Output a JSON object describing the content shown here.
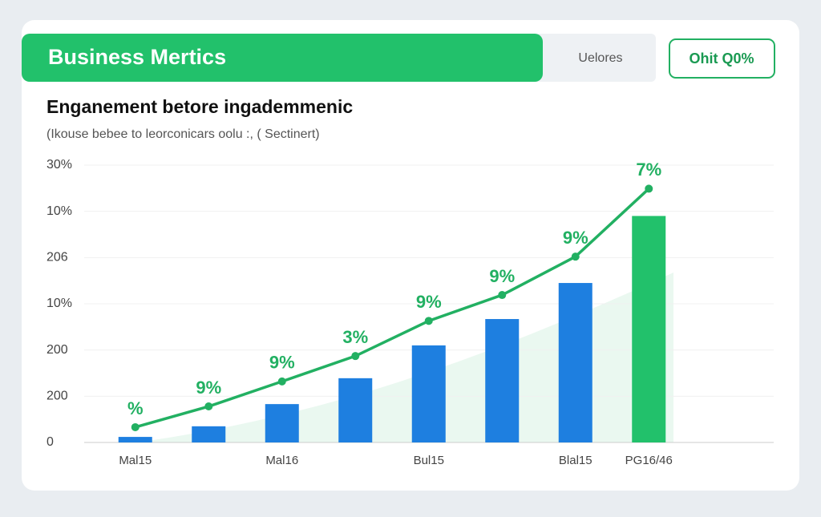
{
  "header": {
    "title": "Business Mertics",
    "tab": "Uelores",
    "button": "Ohit Q0%"
  },
  "chart_data": {
    "type": "bar",
    "title": "Enganement betore ingademmenic",
    "subtitle": "(Ikouse bebee to leorconicars oolu :, ( Sectinert)",
    "categories": [
      "Mal15",
      null,
      "Mal16",
      null,
      "Bul15",
      null,
      "Blal15",
      "PG16/46"
    ],
    "values": [
      0.12,
      0.35,
      0.83,
      1.39,
      2.1,
      2.67,
      3.45,
      4.9
    ],
    "colors": [
      "#1e7fe0",
      "#1e7fe0",
      "#1e7fe0",
      "#1e7fe0",
      "#1e7fe0",
      "#1e7fe0",
      "#1e7fe0",
      "#22c16b"
    ],
    "line_values": [
      0.33,
      0.78,
      1.32,
      1.87,
      2.63,
      3.19,
      4.02,
      5.49
    ],
    "line_color": "#22b062",
    "point_labels": [
      "%",
      "9%",
      "9%",
      "3%",
      "9%",
      "9%",
      "9%",
      "7%"
    ],
    "ylim": [
      0,
      6
    ],
    "yticks": [
      0,
      {
        "value": 1,
        "label": "200"
      },
      {
        "value": 2,
        "label": "200"
      },
      {
        "value": 3,
        "label": "10%"
      },
      {
        "value": 4,
        "label": "206"
      },
      {
        "value": 5,
        "label": "10%"
      },
      {
        "value": 6,
        "label": "30%"
      }
    ],
    "grid": true
  }
}
